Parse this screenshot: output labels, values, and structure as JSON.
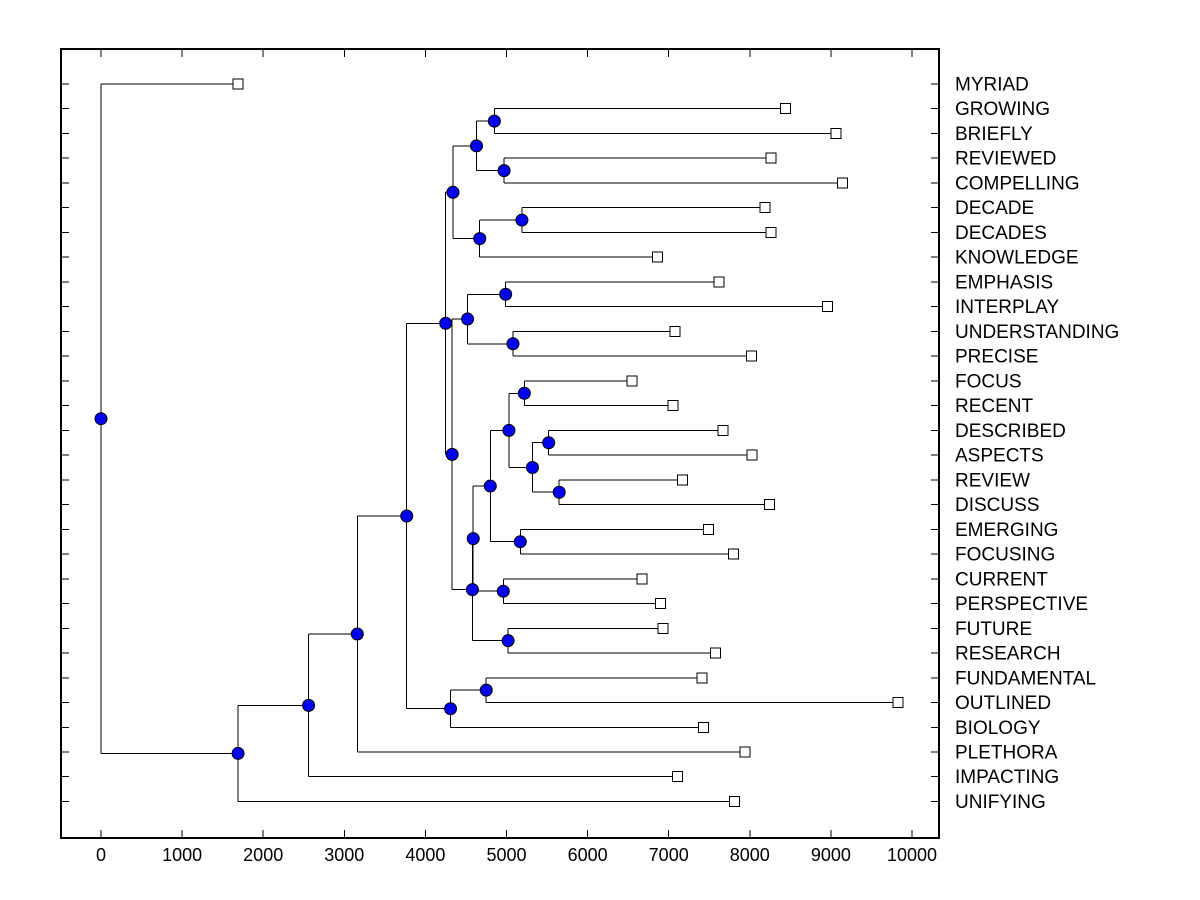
{
  "page": {
    "background": "#ffffff"
  },
  "chart_data": {
    "type": "dendrogram",
    "title": "",
    "orientation": "horizontal-left-to-right",
    "grid": false,
    "legend": null,
    "x_axis": {
      "min": 0,
      "max": 10320,
      "ticks": [
        0,
        1000,
        2000,
        3000,
        4000,
        5000,
        6000,
        7000,
        8000,
        9000,
        10000
      ],
      "tick_labels": [
        "0",
        "1000",
        "2000",
        "3000",
        "4000",
        "5000",
        "6000",
        "7000",
        "8000",
        "9000",
        "10000"
      ],
      "label": "",
      "ticks_mirrored_top": true
    },
    "y_axis": {
      "label": "",
      "leaf_labels_side": "right",
      "row_ticks_both_sides": true
    },
    "leaves": [
      {
        "label": "MYRIAD",
        "value": 1690
      },
      {
        "label": "GROWING",
        "value": 8440
      },
      {
        "label": "BRIEFLY",
        "value": 9060
      },
      {
        "label": "REVIEWED",
        "value": 8260
      },
      {
        "label": "COMPELLING",
        "value": 9140
      },
      {
        "label": "DECADE",
        "value": 8190
      },
      {
        "label": "DECADES",
        "value": 8260
      },
      {
        "label": "KNOWLEDGE",
        "value": 6860
      },
      {
        "label": "EMPHASIS",
        "value": 7620
      },
      {
        "label": "INTERPLAY",
        "value": 8960
      },
      {
        "label": "UNDERSTANDING",
        "value": 7080
      },
      {
        "label": "PRECISE",
        "value": 8020
      },
      {
        "label": "FOCUS",
        "value": 6550
      },
      {
        "label": "RECENT",
        "value": 7050
      },
      {
        "label": "DESCRIBED",
        "value": 7670
      },
      {
        "label": "ASPECTS",
        "value": 8030
      },
      {
        "label": "REVIEW",
        "value": 7170
      },
      {
        "label": "DISCUSS",
        "value": 8240
      },
      {
        "label": "EMERGING",
        "value": 7490
      },
      {
        "label": "FOCUSING",
        "value": 7800
      },
      {
        "label": "CURRENT",
        "value": 6670
      },
      {
        "label": "PERSPECTIVE",
        "value": 6900
      },
      {
        "label": "FUTURE",
        "value": 6930
      },
      {
        "label": "RESEARCH",
        "value": 7580
      },
      {
        "label": "FUNDAMENTAL",
        "value": 7410
      },
      {
        "label": "OUTLINED",
        "value": 9830
      },
      {
        "label": "BIOLOGY",
        "value": 7430
      },
      {
        "label": "PLETHORA",
        "value": 7940
      },
      {
        "label": "IMPACTING",
        "value": 7110
      },
      {
        "label": "UNIFYING",
        "value": 7810
      }
    ],
    "branches": [
      {
        "id": "n1",
        "children": [
          "GROWING",
          "BRIEFLY"
        ],
        "value": 4850
      },
      {
        "id": "n2",
        "children": [
          "REVIEWED",
          "COMPELLING"
        ],
        "value": 4970
      },
      {
        "id": "n3",
        "children": [
          "n1",
          "n2"
        ],
        "value": 4630
      },
      {
        "id": "n4",
        "children": [
          "DECADE",
          "DECADES"
        ],
        "value": 5190
      },
      {
        "id": "n5",
        "children": [
          "n4",
          "KNOWLEDGE"
        ],
        "value": 4670
      },
      {
        "id": "n6",
        "children": [
          "n3",
          "n5"
        ],
        "value": 4340
      },
      {
        "id": "n7",
        "children": [
          "EMPHASIS",
          "INTERPLAY"
        ],
        "value": 4990
      },
      {
        "id": "n8",
        "children": [
          "UNDERSTANDING",
          "PRECISE"
        ],
        "value": 5080
      },
      {
        "id": "n9",
        "children": [
          "n7",
          "n8"
        ],
        "value": 4520
      },
      {
        "id": "n10",
        "children": [
          "FOCUS",
          "RECENT"
        ],
        "value": 5220
      },
      {
        "id": "n11",
        "children": [
          "DESCRIBED",
          "ASPECTS"
        ],
        "value": 5520
      },
      {
        "id": "n12",
        "children": [
          "REVIEW",
          "DISCUSS"
        ],
        "value": 5650
      },
      {
        "id": "n13",
        "children": [
          "n11",
          "n12"
        ],
        "value": 5320
      },
      {
        "id": "n14",
        "children": [
          "n10",
          "n13"
        ],
        "value": 5030
      },
      {
        "id": "n15",
        "children": [
          "EMERGING",
          "FOCUSING"
        ],
        "value": 5170
      },
      {
        "id": "n16",
        "children": [
          "n14",
          "n15"
        ],
        "value": 4800
      },
      {
        "id": "n17",
        "children": [
          "CURRENT",
          "PERSPECTIVE"
        ],
        "value": 4960
      },
      {
        "id": "n18",
        "children": [
          "n16",
          "n17"
        ],
        "value": 4590
      },
      {
        "id": "n19",
        "children": [
          "FUTURE",
          "RESEARCH"
        ],
        "value": 5020
      },
      {
        "id": "n20",
        "children": [
          "n18",
          "n19"
        ],
        "value": 4580
      },
      {
        "id": "n21",
        "children": [
          "n9",
          "n20"
        ],
        "value": 4330
      },
      {
        "id": "n22",
        "children": [
          "n6",
          "n21"
        ],
        "value": 4250
      },
      {
        "id": "n23",
        "children": [
          "FUNDAMENTAL",
          "OUTLINED"
        ],
        "value": 4750
      },
      {
        "id": "n24",
        "children": [
          "n23",
          "BIOLOGY"
        ],
        "value": 4310
      },
      {
        "id": "n25",
        "children": [
          "n22",
          "n24"
        ],
        "value": 3770
      },
      {
        "id": "n26",
        "children": [
          "n25",
          "PLETHORA"
        ],
        "value": 3160
      },
      {
        "id": "n27",
        "children": [
          "n26",
          "IMPACTING"
        ],
        "value": 2560
      },
      {
        "id": "n28",
        "children": [
          "n27",
          "UNIFYING"
        ],
        "value": 1690
      },
      {
        "id": "n29",
        "children": [
          "MYRIAD",
          "n28"
        ],
        "value": 0
      }
    ],
    "root": "n29",
    "colors": {
      "line": "#000000",
      "axis": "#000000",
      "text": "#000000",
      "branch_node_fill": "#0000EE",
      "branch_node_edge": "#000000",
      "leaf_marker_fill": "#FFFFFF",
      "leaf_marker_edge": "#000000",
      "background": "#FFFFFF"
    }
  }
}
